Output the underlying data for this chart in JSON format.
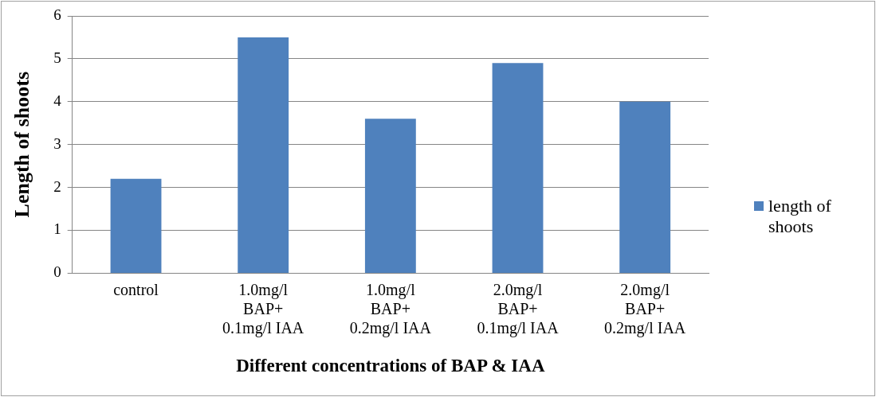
{
  "chart_data": {
    "type": "bar",
    "xlabel": "Different concentrations of BAP & IAA",
    "ylabel": "Length of shoots",
    "categories": [
      "control",
      "1.0mg/l\nBAP+\n0.1mg/l IAA",
      "1.0mg/l\nBAP+\n0.2mg/l IAA",
      "2.0mg/l\nBAP+\n0.1mg/l IAA",
      "2.0mg/l\nBAP+\n0.2mg/l IAA"
    ],
    "series": [
      {
        "name": "length of shoots",
        "color": "#4f81bd",
        "values": [
          2.2,
          5.5,
          3.6,
          4.9,
          4.0
        ]
      }
    ],
    "ylim": [
      0,
      6
    ],
    "yticks": [
      0,
      1,
      2,
      3,
      4,
      5,
      6
    ],
    "grid": "y",
    "legend": "right"
  }
}
